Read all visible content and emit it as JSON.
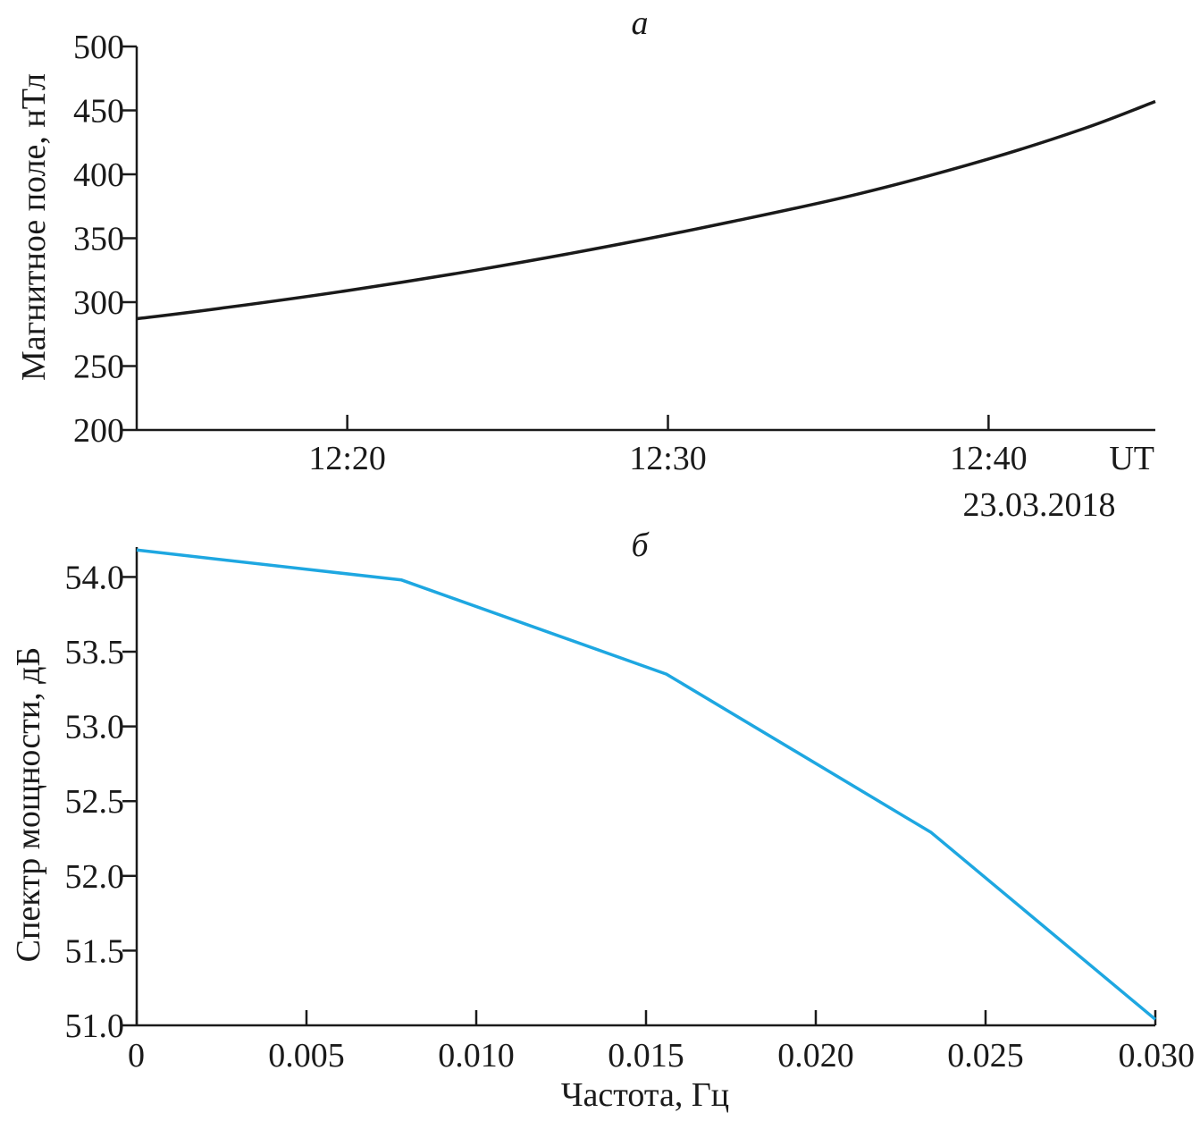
{
  "chart_data": [
    {
      "type": "line",
      "title": "а",
      "ylabel": "Магнитное поле, нТл",
      "xlabel": "",
      "x_unit_label": "UT",
      "date_label": "23.03.2018",
      "xlim": [
        "12:13:26",
        "12:45:12"
      ],
      "ylim": [
        200,
        500
      ],
      "yticks": [
        200,
        250,
        300,
        350,
        400,
        450,
        500
      ],
      "xticks": [
        "12:20",
        "12:30",
        "12:40"
      ],
      "grid": false,
      "series": [
        {
          "color": "#1a1a1a",
          "points": [
            [
              "12:13:26",
              287
            ],
            [
              "12:16:00",
              295
            ],
            [
              "12:20:00",
              309
            ],
            [
              "12:24:00",
              325
            ],
            [
              "12:28:00",
              343
            ],
            [
              "12:32:00",
              363
            ],
            [
              "12:36:00",
              385
            ],
            [
              "12:40:00",
              412
            ],
            [
              "12:43:00",
              436
            ],
            [
              "12:45:12",
              457
            ]
          ]
        }
      ]
    },
    {
      "type": "line",
      "title": "б",
      "xlabel": "Частота, Гц",
      "ylabel": "Спектр мощности, дБ",
      "xlim": [
        0,
        0.03
      ],
      "ylim": [
        51.0,
        54.2
      ],
      "xticks": [
        0,
        0.005,
        0.01,
        0.015,
        0.02,
        0.025,
        0.03
      ],
      "xtick_labels": [
        "0",
        "0.005",
        "0.010",
        "0.015",
        "0.020",
        "0.025",
        "0.030"
      ],
      "yticks": [
        51.0,
        51.5,
        52.0,
        52.5,
        53.0,
        53.5,
        54.0
      ],
      "ytick_labels": [
        "51.0",
        "51.5",
        "52.0",
        "52.5",
        "53.0",
        "53.5",
        "54.0"
      ],
      "grid": false,
      "series": [
        {
          "color": "#1ea7e1",
          "x": [
            0,
            0.0078,
            0.0156,
            0.0234,
            0.03
          ],
          "y": [
            54.18,
            53.98,
            53.35,
            52.29,
            51.04
          ]
        }
      ]
    }
  ]
}
